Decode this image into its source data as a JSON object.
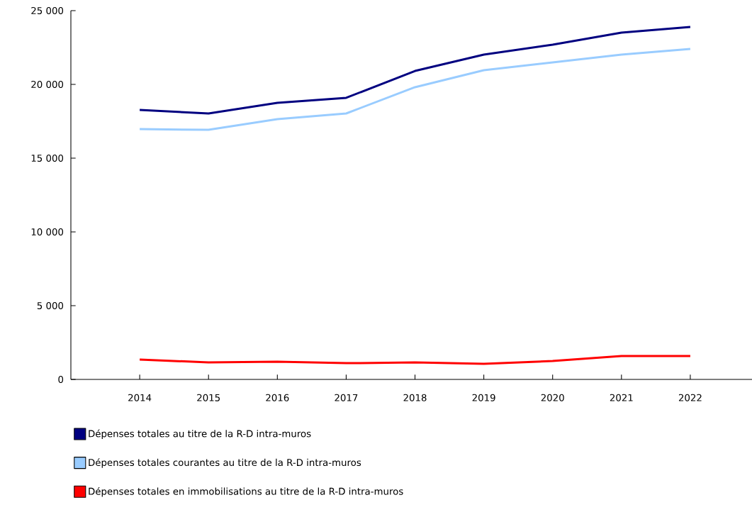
{
  "chart_data": {
    "type": "line",
    "categories": [
      "2014",
      "2015",
      "2016",
      "2017",
      "2018",
      "2019",
      "2020",
      "2021",
      "2022"
    ],
    "series": [
      {
        "name": "Dépenses totales au titre de la R-D intra-muros",
        "color": "#000080",
        "values": [
          18270,
          18030,
          18750,
          19090,
          20910,
          22020,
          22690,
          23510,
          23890
        ]
      },
      {
        "name": "Dépenses totales courantes au titre de la R-D intra-muros",
        "color": "#99ccff",
        "values": [
          16970,
          16920,
          17640,
          18030,
          19810,
          20960,
          21490,
          22020,
          22400
        ]
      },
      {
        "name": "Dépenses totales en immobilisations au titre de la R-D intra-muros",
        "color": "#ff0000",
        "values": [
          1350,
          1150,
          1200,
          1100,
          1150,
          1060,
          1250,
          1590,
          1590
        ]
      }
    ],
    "ylim": [
      0,
      25000
    ],
    "yticks": [
      0,
      {
        "value": 5000,
        "label": "5 000"
      },
      {
        "value": 10000,
        "label": "10 000"
      },
      {
        "value": 15000,
        "label": "15 000"
      },
      {
        "value": 20000,
        "label": "20 000"
      },
      {
        "value": 25000,
        "label": "25 000"
      }
    ],
    "legend": "bottom"
  }
}
